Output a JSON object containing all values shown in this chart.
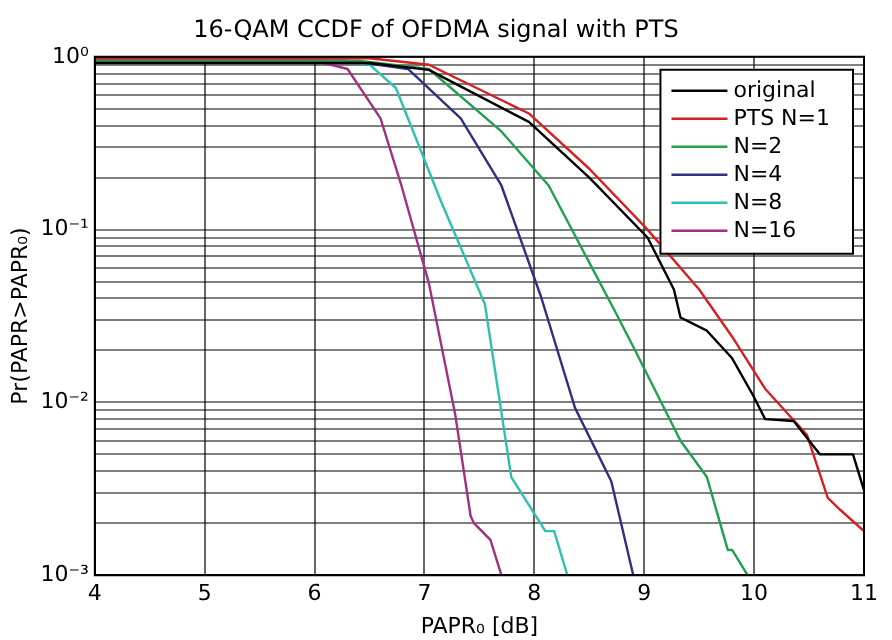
{
  "chart_data": {
    "type": "line",
    "title": "16-QAM CCDF of OFDMA signal with PTS",
    "xlabel": "PAPR₀ [dB]",
    "ylabel": "Pr(PAPR>PAPR₀)",
    "log": "y",
    "grid": true,
    "legend": "top right",
    "marker": "none",
    "line_style": "solid",
    "xlim": [
      4,
      11
    ],
    "xticks": [
      4,
      5,
      6,
      7,
      8,
      9,
      10,
      11
    ],
    "ylim": [
      0.001,
      1
    ],
    "yticks": [
      {
        "value": 0.001,
        "label": "10⁻³"
      },
      {
        "value": 0.002,
        "label": null
      },
      {
        "value": 0.003,
        "label": null
      },
      {
        "value": 0.004,
        "label": null
      },
      {
        "value": 0.005,
        "label": null
      },
      {
        "value": 0.006,
        "label": null
      },
      {
        "value": 0.007,
        "label": null
      },
      {
        "value": 0.008,
        "label": null
      },
      {
        "value": 0.009,
        "label": null
      },
      {
        "value": 0.01,
        "label": "10⁻²"
      },
      {
        "value": 0.02,
        "label": null
      },
      {
        "value": 0.03,
        "label": null
      },
      {
        "value": 0.04,
        "label": null
      },
      {
        "value": 0.05,
        "label": null
      },
      {
        "value": 0.06,
        "label": null
      },
      {
        "value": 0.07,
        "label": null
      },
      {
        "value": 0.08,
        "label": null
      },
      {
        "value": 0.09,
        "label": null
      },
      {
        "value": 0.1,
        "label": "10⁻¹"
      },
      {
        "value": 0.2,
        "label": null
      },
      {
        "value": 0.3,
        "label": null
      },
      {
        "value": 0.4,
        "label": null
      },
      {
        "value": 0.5,
        "label": null
      },
      {
        "value": 0.6,
        "label": null
      },
      {
        "value": 0.7,
        "label": null
      },
      {
        "value": 0.8,
        "label": null
      },
      {
        "value": 0.9,
        "label": null
      },
      {
        "value": 1,
        "label": "10⁰"
      }
    ],
    "series": [
      {
        "name": "original",
        "color": "#000000",
        "x": [
          4,
          6.5,
          7.04,
          7.95,
          8.5,
          9.03,
          9.27,
          9.33,
          9.57,
          9.8,
          9.99,
          10.1,
          10.36,
          10.6,
          10.9,
          11
        ],
        "values": [
          0.92,
          0.92,
          0.84,
          0.42,
          0.2,
          0.09,
          0.045,
          0.031,
          0.026,
          0.018,
          0.011,
          0.008,
          0.0078,
          0.005,
          0.005,
          0.0031
        ]
      },
      {
        "name": "PTS N=1",
        "color": "#d62020",
        "x": [
          4,
          6.5,
          7.04,
          7.95,
          8.5,
          9.03,
          9.5,
          9.8,
          10.1,
          10.48,
          10.67,
          10.78,
          11
        ],
        "values": [
          0.98,
          0.98,
          0.9,
          0.47,
          0.225,
          0.1,
          0.045,
          0.024,
          0.012,
          0.0065,
          0.0028,
          0.0024,
          0.0018
        ]
      },
      {
        "name": "N=2",
        "color": "#20a050",
        "x": [
          4,
          6.4,
          7.04,
          7.7,
          8.13,
          8.73,
          8.9,
          9.33,
          9.57,
          9.76,
          9.8,
          9.94
        ],
        "values": [
          0.95,
          0.95,
          0.85,
          0.37,
          0.18,
          0.034,
          0.021,
          0.006,
          0.0037,
          0.0014,
          0.0014,
          0.001
        ]
      },
      {
        "name": "N=4",
        "color": "#303080",
        "x": [
          4,
          6.3,
          6.85,
          7.33,
          7.7,
          8.06,
          8.37,
          8.7,
          8.9
        ],
        "values": [
          0.95,
          0.95,
          0.85,
          0.44,
          0.18,
          0.041,
          0.0093,
          0.0035,
          0.001
        ]
      },
      {
        "name": "N=8",
        "color": "#30c0b0",
        "x": [
          4,
          6.25,
          6.5,
          6.74,
          7.15,
          7.55,
          7.79,
          8.1,
          8.18,
          8.3
        ],
        "values": [
          0.95,
          0.95,
          0.9,
          0.66,
          0.146,
          0.037,
          0.0037,
          0.0018,
          0.0018,
          0.001
        ]
      },
      {
        "name": "N=16",
        "color": "#a03080",
        "x": [
          4,
          6.0,
          6.3,
          6.6,
          6.79,
          7.04,
          7.28,
          7.42,
          7.45,
          7.6,
          7.7
        ],
        "values": [
          0.95,
          0.95,
          0.85,
          0.44,
          0.18,
          0.049,
          0.0085,
          0.0022,
          0.002,
          0.0016,
          0.001
        ]
      }
    ]
  }
}
